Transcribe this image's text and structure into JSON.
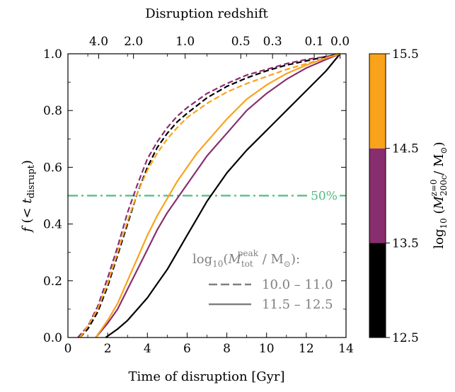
{
  "chart_data": {
    "type": "line",
    "x_axis": {
      "label": "Time of disruption [Gyr]",
      "range": [
        0,
        14
      ],
      "ticks": [
        0,
        2,
        4,
        6,
        8,
        10,
        12,
        14
      ],
      "tick_labels": [
        "0",
        "2",
        "4",
        "6",
        "8",
        "10",
        "12",
        "14"
      ]
    },
    "top_axis": {
      "label": "Disruption redshift",
      "ticks": [
        {
          "label": "4.0",
          "t": 1.55
        },
        {
          "label": "2.0",
          "t": 3.3
        },
        {
          "label": "1.0",
          "t": 5.9
        },
        {
          "label": "0.5",
          "t": 8.7
        },
        {
          "label": "0.3",
          "t": 10.3
        },
        {
          "label": "0.1",
          "t": 12.4
        },
        {
          "label": "0.0",
          "t": 13.7
        }
      ]
    },
    "y_axis": {
      "label": "f(< t_disrupt)",
      "range": [
        0,
        1
      ],
      "ticks": [
        0,
        0.2,
        0.4,
        0.6,
        0.8,
        1.0
      ],
      "tick_labels": [
        "0.0",
        "0.2",
        "0.4",
        "0.6",
        "0.8",
        "1.0"
      ]
    },
    "reference_line": {
      "y": 0.5,
      "label": "50%",
      "color": "#4dbd7f",
      "style": "dash-dot"
    },
    "colorbar": {
      "label": "log10 (M_200c^(z=0) / M_sun)",
      "bins": [
        {
          "from": 12.5,
          "to": 13.5,
          "color": "#000000"
        },
        {
          "from": 13.5,
          "to": 14.5,
          "color": "#882e6f"
        },
        {
          "from": 14.5,
          "to": 15.5,
          "color": "#f9a31a"
        }
      ],
      "tick_labels": [
        "12.5",
        "13.5",
        "14.5",
        "15.5"
      ]
    },
    "legend": {
      "title": "log10(M_tot^peak / M_sun):",
      "entries": [
        {
          "label": "10.0 – 11.0",
          "style": "dashed"
        },
        {
          "label": "11.5 – 12.5",
          "style": "solid"
        }
      ],
      "placement": "lower-right"
    },
    "series": [
      {
        "host_bin": "12.5–13.5",
        "mass_range": "10.0–11.0",
        "color": "#000000",
        "style": "dashed",
        "x": [
          0.6,
          1.0,
          1.5,
          2.0,
          2.5,
          3.0,
          3.5,
          4.0,
          4.5,
          5.0,
          5.5,
          6.0,
          7.0,
          8.0,
          9.0,
          10.0,
          11.0,
          12.0,
          13.0,
          13.7
        ],
        "y": [
          0.0,
          0.03,
          0.09,
          0.18,
          0.29,
          0.4,
          0.51,
          0.6,
          0.67,
          0.72,
          0.76,
          0.79,
          0.845,
          0.885,
          0.915,
          0.94,
          0.96,
          0.975,
          0.99,
          1.0
        ]
      },
      {
        "host_bin": "13.5–14.5",
        "mass_range": "10.0–11.0",
        "color": "#882e6f",
        "style": "dashed",
        "x": [
          0.5,
          1.0,
          1.5,
          2.0,
          2.5,
          3.0,
          3.5,
          4.0,
          4.5,
          5.0,
          5.5,
          6.0,
          7.0,
          8.0,
          9.0,
          10.0,
          11.0,
          12.0,
          13.0,
          13.7
        ],
        "y": [
          0.0,
          0.04,
          0.11,
          0.21,
          0.32,
          0.44,
          0.54,
          0.63,
          0.69,
          0.74,
          0.78,
          0.81,
          0.86,
          0.895,
          0.925,
          0.945,
          0.965,
          0.98,
          0.99,
          1.0
        ]
      },
      {
        "host_bin": "14.5–15.5",
        "mass_range": "10.0–11.0",
        "color": "#f9a31a",
        "style": "dashed",
        "x": [
          0.6,
          1.0,
          1.5,
          2.0,
          2.5,
          3.0,
          3.5,
          4.0,
          4.5,
          5.0,
          5.5,
          6.0,
          7.0,
          8.0,
          9.0,
          10.0,
          11.0,
          12.0,
          13.0,
          13.7
        ],
        "y": [
          0.0,
          0.04,
          0.1,
          0.19,
          0.3,
          0.41,
          0.51,
          0.59,
          0.65,
          0.7,
          0.74,
          0.775,
          0.825,
          0.865,
          0.895,
          0.92,
          0.945,
          0.965,
          0.985,
          1.0
        ]
      },
      {
        "host_bin": "12.5–13.5",
        "mass_range": "11.5–12.5",
        "color": "#000000",
        "style": "solid",
        "x": [
          1.9,
          2.5,
          3.0,
          3.5,
          4.0,
          4.5,
          5.0,
          5.5,
          6.0,
          6.5,
          7.0,
          7.5,
          8.0,
          9.0,
          10.0,
          11.0,
          12.0,
          13.0,
          13.7
        ],
        "y": [
          0.0,
          0.03,
          0.06,
          0.1,
          0.14,
          0.19,
          0.24,
          0.3,
          0.36,
          0.42,
          0.48,
          0.53,
          0.58,
          0.66,
          0.73,
          0.8,
          0.87,
          0.94,
          1.0
        ]
      },
      {
        "host_bin": "13.5–14.5",
        "mass_range": "11.5–12.5",
        "color": "#882e6f",
        "style": "solid",
        "x": [
          1.4,
          2.0,
          2.5,
          3.0,
          3.5,
          4.0,
          4.5,
          5.0,
          5.5,
          6.0,
          6.5,
          7.0,
          7.5,
          8.0,
          9.0,
          10.0,
          11.0,
          12.0,
          13.0,
          13.7
        ],
        "y": [
          0.0,
          0.05,
          0.1,
          0.17,
          0.24,
          0.31,
          0.38,
          0.44,
          0.49,
          0.54,
          0.59,
          0.64,
          0.68,
          0.72,
          0.8,
          0.86,
          0.91,
          0.95,
          0.98,
          1.0
        ]
      },
      {
        "host_bin": "14.5–15.5",
        "mass_range": "11.5–12.5",
        "color": "#f9a31a",
        "style": "solid",
        "x": [
          1.4,
          2.0,
          2.5,
          3.0,
          3.5,
          4.0,
          4.5,
          5.0,
          5.5,
          6.0,
          6.5,
          7.0,
          7.5,
          8.0,
          9.0,
          10.0,
          11.0,
          12.0,
          13.0,
          13.7
        ],
        "y": [
          0.0,
          0.06,
          0.12,
          0.2,
          0.28,
          0.36,
          0.43,
          0.49,
          0.55,
          0.6,
          0.65,
          0.69,
          0.73,
          0.77,
          0.84,
          0.89,
          0.93,
          0.96,
          0.985,
          1.0
        ]
      }
    ]
  }
}
